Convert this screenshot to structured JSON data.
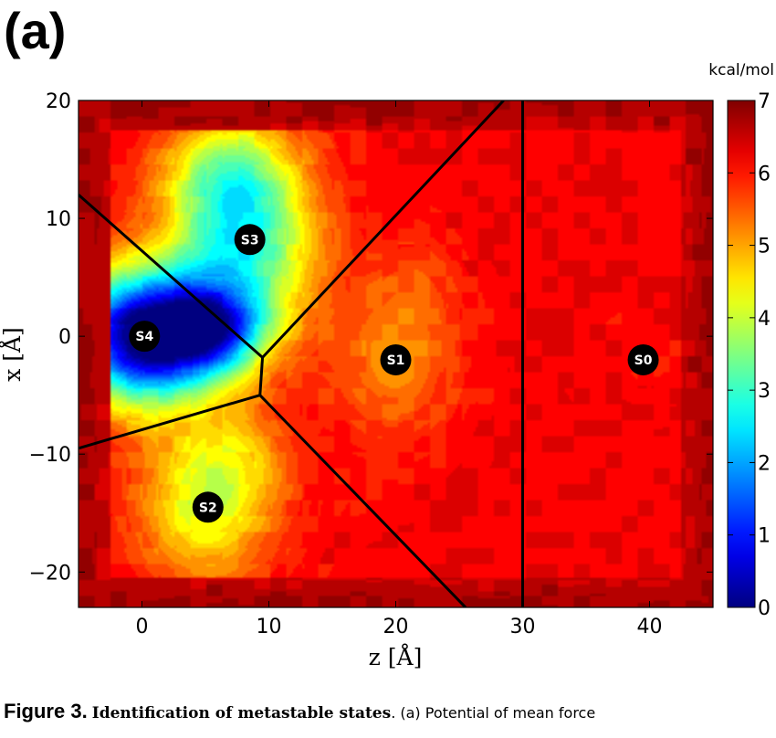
{
  "panel_label": "(a)",
  "chart_data": {
    "type": "heatmap",
    "title": "",
    "xlabel": "z [Å]",
    "ylabel": "x [Å]",
    "xlim": [
      -5,
      45
    ],
    "ylim": [
      -23,
      20
    ],
    "xticks": [
      0,
      10,
      20,
      30,
      40
    ],
    "yticks": [
      -20,
      -10,
      0,
      10,
      20
    ],
    "grid": false,
    "colorbar": {
      "unit": "kcal/mol",
      "min": 0,
      "max": 7,
      "ticks": [
        0,
        1,
        2,
        3,
        4,
        5,
        6,
        7
      ],
      "colormap": "jet",
      "position": "right"
    },
    "background_value": 6.2,
    "edge_value": 6.8,
    "wells": [
      {
        "state": "S4",
        "z": 0,
        "x": 0,
        "min_value": 0.0
      },
      {
        "state": "S3",
        "z": 8,
        "x": 8,
        "min_value": 3.0
      },
      {
        "state": "S2",
        "z": 5,
        "x": -14.5,
        "min_value": 4.2
      },
      {
        "state": "S1",
        "z": 20,
        "x": -2,
        "min_value": 5.2
      },
      {
        "state": "S0",
        "z": 40,
        "x": -2,
        "min_value": 6.1
      }
    ],
    "states": [
      {
        "label": "S0",
        "z": 39.5,
        "x": -2
      },
      {
        "label": "S1",
        "z": 20,
        "x": -2
      },
      {
        "label": "S2",
        "z": 5.2,
        "x": -14.5
      },
      {
        "label": "S3",
        "z": 8.5,
        "x": 8.2
      },
      {
        "label": "S4",
        "z": 0.2,
        "x": 0
      }
    ],
    "boundaries": [
      [
        [
          -5,
          12
        ],
        [
          9.5,
          -1.8
        ]
      ],
      [
        [
          9.5,
          -1.8
        ],
        [
          28.5,
          20
        ]
      ],
      [
        [
          9.5,
          -1.8
        ],
        [
          9.3,
          -5
        ]
      ],
      [
        [
          9.3,
          -5
        ],
        [
          -5,
          -9.5
        ]
      ],
      [
        [
          9.3,
          -5
        ],
        [
          25.5,
          -23
        ]
      ],
      [
        [
          30,
          -23
        ],
        [
          30,
          20
        ]
      ]
    ]
  },
  "caption": {
    "figure_number": "Figure 3.",
    "title": "Identification of metastable states",
    "text": ". (a) Potential of mean force"
  }
}
